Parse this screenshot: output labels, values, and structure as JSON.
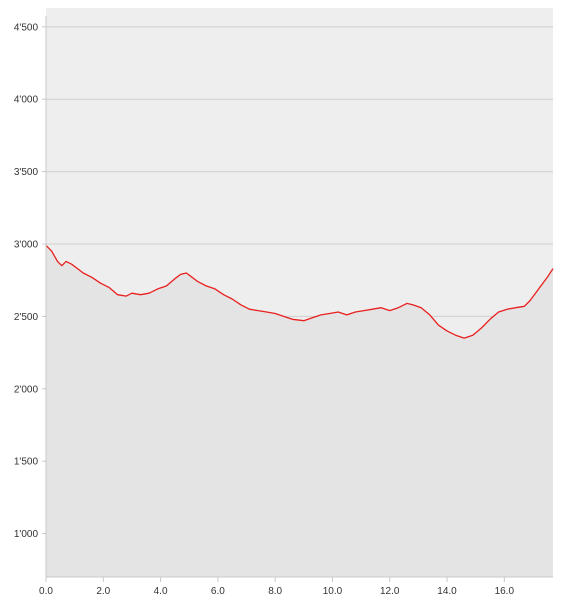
{
  "colors": {
    "page_background": "#ffffff",
    "plot_background": "#eeeeee",
    "area_fill": "#e4e4e4",
    "line": "#e8201e",
    "grid": "#d0d0d0",
    "axis": "#c8c8c8"
  },
  "chart_data": {
    "type": "area",
    "title": "",
    "xlabel": "",
    "ylabel": "",
    "grid": true,
    "legend": "none",
    "xlim": [
      0,
      17.7
    ],
    "ylim": [
      700,
      4630
    ],
    "x_ticks": [
      {
        "value": 0,
        "label": "0.0"
      },
      {
        "value": 2,
        "label": "2.0"
      },
      {
        "value": 4,
        "label": "4.0"
      },
      {
        "value": 6,
        "label": "6.0"
      },
      {
        "value": 8,
        "label": "8.0"
      },
      {
        "value": 10,
        "label": "10.0"
      },
      {
        "value": 12,
        "label": "12.0"
      },
      {
        "value": 14,
        "label": "14.0"
      },
      {
        "value": 16,
        "label": "16.0"
      }
    ],
    "y_ticks": [
      {
        "value": 1000,
        "label": "1'000"
      },
      {
        "value": 1500,
        "label": "1'500"
      },
      {
        "value": 2000,
        "label": "2'000"
      },
      {
        "value": 2500,
        "label": "2'500"
      },
      {
        "value": 3000,
        "label": "3'000"
      },
      {
        "value": 3500,
        "label": "3'500"
      },
      {
        "value": 4000,
        "label": "4'000"
      },
      {
        "value": 4500,
        "label": "4'500"
      }
    ],
    "series": [
      {
        "x": [
          0,
          0.2,
          0.4,
          0.55,
          0.7,
          0.9,
          1.1,
          1.3,
          1.6,
          1.9,
          2.2,
          2.5,
          2.8,
          3.0,
          3.3,
          3.6,
          3.9,
          4.2,
          4.5,
          4.7,
          4.9,
          5.1,
          5.3,
          5.6,
          5.9,
          6.2,
          6.5,
          6.8,
          7.1,
          7.4,
          7.7,
          8.0,
          8.3,
          8.6,
          9.0,
          9.3,
          9.6,
          9.9,
          10.2,
          10.5,
          10.8,
          11.1,
          11.4,
          11.7,
          12.0,
          12.3,
          12.6,
          12.8,
          13.1,
          13.4,
          13.7,
          14.0,
          14.3,
          14.6,
          14.9,
          15.2,
          15.5,
          15.8,
          16.1,
          16.4,
          16.7,
          16.9,
          17.2,
          17.5,
          17.7
        ],
        "y": [
          2990,
          2950,
          2880,
          2850,
          2880,
          2860,
          2830,
          2800,
          2770,
          2730,
          2700,
          2650,
          2640,
          2660,
          2650,
          2660,
          2690,
          2710,
          2760,
          2790,
          2800,
          2770,
          2740,
          2710,
          2690,
          2650,
          2620,
          2580,
          2550,
          2540,
          2530,
          2520,
          2500,
          2480,
          2470,
          2490,
          2510,
          2520,
          2530,
          2510,
          2530,
          2540,
          2550,
          2560,
          2540,
          2560,
          2590,
          2580,
          2560,
          2510,
          2440,
          2400,
          2370,
          2350,
          2370,
          2420,
          2480,
          2530,
          2550,
          2560,
          2570,
          2610,
          2690,
          2770,
          2830
        ]
      }
    ]
  }
}
